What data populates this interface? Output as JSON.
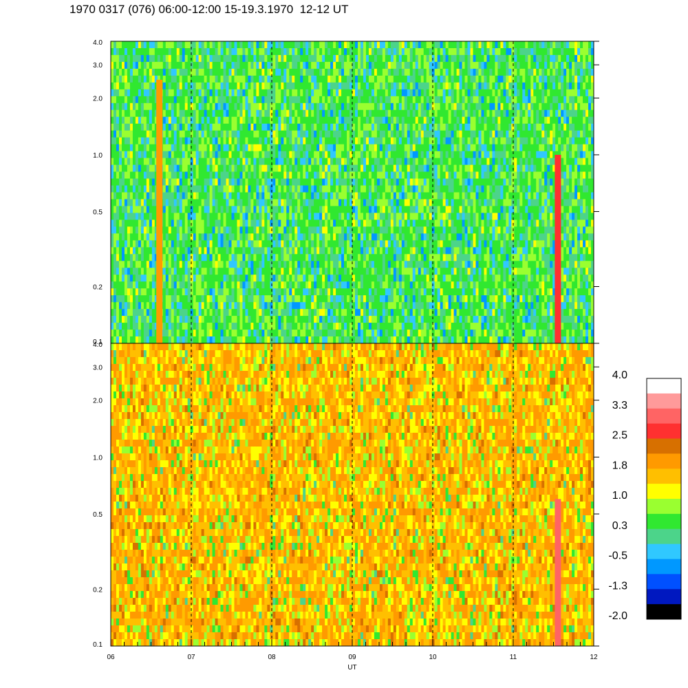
{
  "title": "1970 0317 (076) 06:00-12:00 15-19.3.1970  12-12 UT",
  "chart_data": {
    "type": "heatmap",
    "xlabel": "UT",
    "x_ticks": [
      "06",
      "07",
      "08",
      "09",
      "10",
      "11",
      "12"
    ],
    "xlim": [
      6,
      12
    ],
    "y_scale": "log",
    "ylim": [
      0.1,
      4.0
    ],
    "panels": [
      {
        "name": "upper",
        "y_ticks": [
          "4.0",
          "3.0",
          "2.0",
          "1.0",
          "0.5",
          "0.2",
          "0.1"
        ],
        "dominant_levels": [
          "0.3",
          "-0.5",
          "1.0"
        ],
        "notable_features": [
          {
            "ut": 6.6,
            "y_range": [
              0.1,
              2.5
            ],
            "level": "1.8"
          },
          {
            "ut": 11.55,
            "y_range": [
              0.1,
              1.0
            ],
            "level": "2.5"
          }
        ]
      },
      {
        "name": "lower",
        "y_ticks": [
          "4.0",
          "3.0",
          "2.0",
          "1.0",
          "0.5",
          "0.2",
          "0.1"
        ],
        "dominant_levels": [
          "1.8",
          "1.0",
          "2.5"
        ],
        "notable_features": [
          {
            "ut": 11.55,
            "y_range": [
              0.1,
              0.6
            ],
            "level": "3.3"
          }
        ]
      }
    ],
    "vertical_markers_ut": [
      7,
      8,
      9,
      10,
      11
    ],
    "colorbar": {
      "labels": [
        "4.0",
        "3.3",
        "2.5",
        "1.8",
        "1.0",
        "0.3",
        "-0.5",
        "-1.3",
        "-2.0"
      ],
      "colors": [
        "#ffffff",
        "#ff9a9a",
        "#ff6464",
        "#ff3030",
        "#d77000",
        "#ff9a00",
        "#ffbf00",
        "#ffff00",
        "#9aff30",
        "#30e830",
        "#4cd48a",
        "#30c8ff",
        "#0098ff",
        "#0050ff",
        "#0018c0",
        "#000000"
      ]
    }
  }
}
